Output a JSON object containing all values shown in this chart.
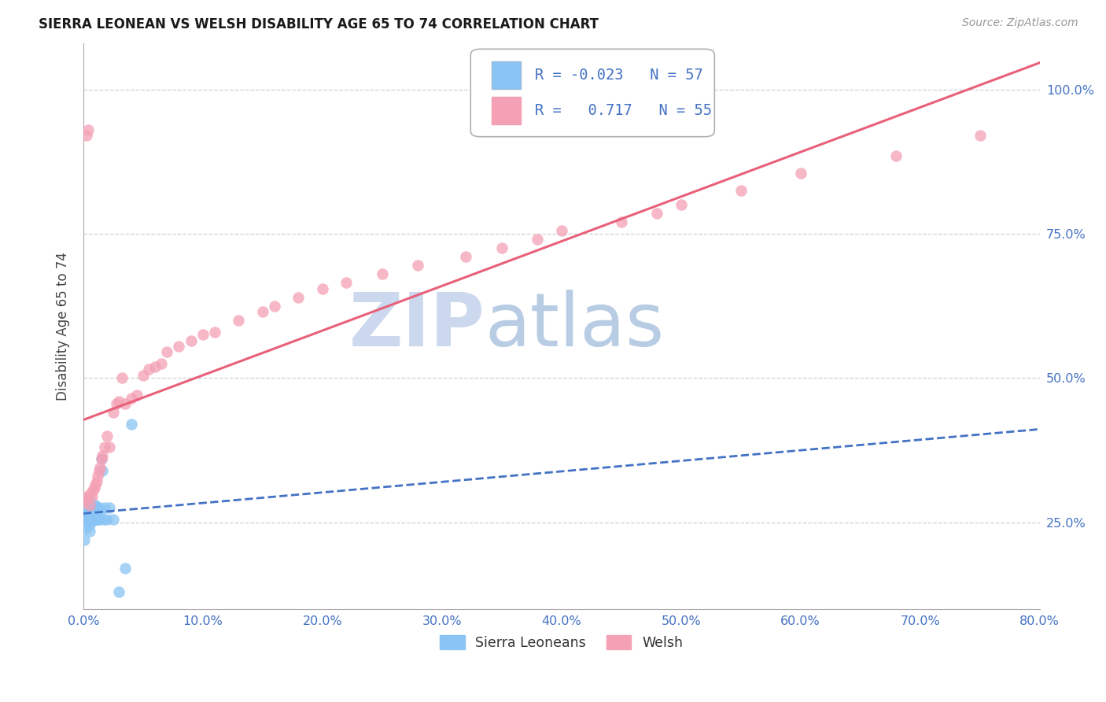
{
  "title": "SIERRA LEONEAN VS WELSH DISABILITY AGE 65 TO 74 CORRELATION CHART",
  "source": "Source: ZipAtlas.com",
  "ylabel": "Disability Age 65 to 74",
  "xmin": 0.0,
  "xmax": 0.8,
  "ymin": 0.1,
  "ymax": 1.08,
  "yticks": [
    0.25,
    0.5,
    0.75,
    1.0
  ],
  "ytick_labels": [
    "25.0%",
    "50.0%",
    "75.0%",
    "100.0%"
  ],
  "xtick_labels": [
    "0.0%",
    "10.0%",
    "20.0%",
    "30.0%",
    "40.0%",
    "50.0%",
    "60.0%",
    "70.0%",
    "80.0%"
  ],
  "xtick_values": [
    0.0,
    0.1,
    0.2,
    0.3,
    0.4,
    0.5,
    0.6,
    0.7,
    0.8
  ],
  "sierra_R": -0.023,
  "sierra_N": 57,
  "welsh_R": 0.717,
  "welsh_N": 55,
  "sierra_color": "#89c4f4",
  "welsh_color": "#f4a0b5",
  "sierra_line_color": "#4472c4",
  "welsh_line_color": "#e8607a",
  "grid_color": "#d0d0d0",
  "title_color": "#1a1a1a",
  "tick_color": "#4472c4",
  "watermark_zip_color": "#c8daf5",
  "watermark_atlas_color": "#b8c8e8",
  "legend_border_color": "#b0b0b0",
  "sierra_x": [
    0.001,
    0.001,
    0.002,
    0.002,
    0.002,
    0.003,
    0.003,
    0.003,
    0.003,
    0.004,
    0.004,
    0.004,
    0.004,
    0.005,
    0.005,
    0.005,
    0.005,
    0.005,
    0.005,
    0.005,
    0.005,
    0.006,
    0.006,
    0.006,
    0.006,
    0.006,
    0.007,
    0.007,
    0.007,
    0.007,
    0.008,
    0.008,
    0.008,
    0.008,
    0.009,
    0.009,
    0.009,
    0.01,
    0.01,
    0.01,
    0.011,
    0.011,
    0.012,
    0.012,
    0.013,
    0.013,
    0.014,
    0.015,
    0.016,
    0.017,
    0.018,
    0.02,
    0.022,
    0.025,
    0.03,
    0.035,
    0.04
  ],
  "sierra_y": [
    0.27,
    0.22,
    0.28,
    0.265,
    0.24,
    0.275,
    0.27,
    0.26,
    0.255,
    0.28,
    0.27,
    0.265,
    0.255,
    0.285,
    0.28,
    0.275,
    0.27,
    0.265,
    0.255,
    0.245,
    0.235,
    0.285,
    0.275,
    0.27,
    0.265,
    0.255,
    0.28,
    0.275,
    0.27,
    0.255,
    0.28,
    0.275,
    0.27,
    0.255,
    0.275,
    0.27,
    0.255,
    0.28,
    0.275,
    0.255,
    0.275,
    0.255,
    0.27,
    0.255,
    0.275,
    0.255,
    0.27,
    0.36,
    0.34,
    0.255,
    0.275,
    0.255,
    0.275,
    0.255,
    0.13,
    0.17,
    0.42
  ],
  "welsh_x": [
    0.001,
    0.002,
    0.003,
    0.003,
    0.004,
    0.005,
    0.006,
    0.007,
    0.008,
    0.009,
    0.01,
    0.011,
    0.012,
    0.013,
    0.014,
    0.015,
    0.016,
    0.018,
    0.02,
    0.022,
    0.025,
    0.028,
    0.03,
    0.032,
    0.035,
    0.04,
    0.045,
    0.05,
    0.055,
    0.06,
    0.065,
    0.07,
    0.08,
    0.09,
    0.1,
    0.11,
    0.13,
    0.15,
    0.16,
    0.18,
    0.2,
    0.22,
    0.25,
    0.28,
    0.32,
    0.35,
    0.38,
    0.4,
    0.45,
    0.48,
    0.5,
    0.55,
    0.6,
    0.68,
    0.75
  ],
  "welsh_y": [
    0.285,
    0.29,
    0.295,
    0.92,
    0.93,
    0.28,
    0.3,
    0.295,
    0.305,
    0.31,
    0.315,
    0.32,
    0.33,
    0.34,
    0.345,
    0.36,
    0.365,
    0.38,
    0.4,
    0.38,
    0.44,
    0.455,
    0.46,
    0.5,
    0.455,
    0.465,
    0.47,
    0.505,
    0.515,
    0.52,
    0.525,
    0.545,
    0.555,
    0.565,
    0.575,
    0.58,
    0.6,
    0.615,
    0.625,
    0.64,
    0.655,
    0.665,
    0.68,
    0.695,
    0.71,
    0.725,
    0.74,
    0.755,
    0.77,
    0.785,
    0.8,
    0.825,
    0.855,
    0.885,
    0.92
  ]
}
